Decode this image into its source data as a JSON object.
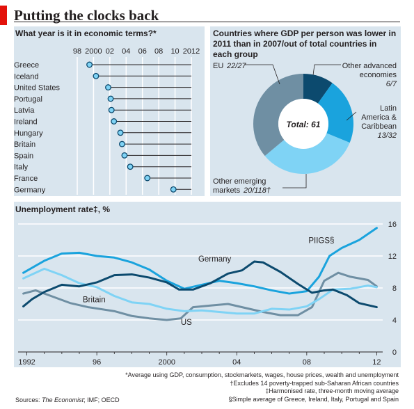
{
  "title": "Putting the clocks back",
  "colors": {
    "accent_red": "#e3120b",
    "panel_bg": "#d9e5ee",
    "dark_teal": "#0c4a6e",
    "mid_blue": "#1aa3dd",
    "light_blue": "#7fd3f5",
    "grey_blue": "#6f8fa3"
  },
  "chart_data": [
    {
      "type": "scatter",
      "title": "What year is it in economic terms?*",
      "x_ticks": [
        "98",
        "2000",
        "02",
        "04",
        "06",
        "08",
        "10",
        "2012"
      ],
      "xlim": [
        1998,
        2012
      ],
      "categories": [
        "Greece",
        "Iceland",
        "United States",
        "Portugal",
        "Latvia",
        "Ireland",
        "Hungary",
        "Britain",
        "Spain",
        "Italy",
        "France",
        "Germany"
      ],
      "values": [
        1999.5,
        2000.3,
        2001.8,
        2002.1,
        2002.2,
        2002.5,
        2003.3,
        2003.5,
        2003.8,
        2004.5,
        2006.6,
        2009.8
      ],
      "marker_color": "#7fd3f5"
    },
    {
      "type": "pie",
      "title": "Countries where GDP per person was lower in 2011 than in 2007/out of total countries in each group",
      "center_label": "Total: 61",
      "slices": [
        {
          "name": "Other advanced economies",
          "fraction": "6/7",
          "value": 6,
          "color": "#0c4a6e"
        },
        {
          "name": "Latin America & Caribbean",
          "fraction": "13/32",
          "value": 13,
          "color": "#1aa3dd"
        },
        {
          "name": "Other emerging markets",
          "fraction": "20/118†",
          "value": 20,
          "color": "#7fd3f5"
        },
        {
          "name": "EU",
          "fraction": "22/27",
          "value": 22,
          "color": "#6f8fa3"
        }
      ]
    },
    {
      "type": "line",
      "title": "Unemployment rate‡, %",
      "x_ticks": [
        "1992",
        "96",
        "2000",
        "04",
        "08",
        "12"
      ],
      "y_ticks": [
        "0",
        "4",
        "8",
        "12",
        "16"
      ],
      "xlim": [
        1991.5,
        2012.5
      ],
      "ylim": [
        0,
        16
      ],
      "series": [
        {
          "name": "Germany",
          "color": "#0c4a6e",
          "x": [
            1991.8,
            1992.3,
            1993,
            1994,
            1995,
            1996,
            1997,
            1998,
            1999,
            2000,
            2000.7,
            2001.5,
            2002.5,
            2003.5,
            2004.3,
            2005,
            2005.5,
            2006.5,
            2007.5,
            2008.3,
            2009,
            2009.5,
            2010.3,
            2011,
            2012
          ],
          "values": [
            5.7,
            6.6,
            7.5,
            8.4,
            8.2,
            8.7,
            9.6,
            9.7,
            9.3,
            8.7,
            7.8,
            7.8,
            8.6,
            9.8,
            10.2,
            11.3,
            11.2,
            10.0,
            8.5,
            7.4,
            7.7,
            7.8,
            7.1,
            6.1,
            5.6
          ]
        },
        {
          "name": "PIIGS§",
          "color": "#1aa3dd",
          "x": [
            1991.8,
            1993,
            1994,
            1995,
            1996,
            1997,
            1998,
            1999,
            2000,
            2001,
            2002,
            2003,
            2004,
            2005,
            2006,
            2007,
            2008,
            2008.7,
            2009.3,
            2010,
            2011,
            2012
          ],
          "values": [
            9.9,
            11.4,
            12.3,
            12.4,
            12.0,
            11.8,
            11.2,
            10.3,
            8.9,
            7.9,
            8.4,
            8.9,
            8.6,
            8.2,
            7.7,
            7.3,
            7.6,
            9.4,
            12.0,
            13.0,
            14.0,
            15.5
          ]
        },
        {
          "name": "Britain",
          "color": "#7fd3f5",
          "x": [
            1991.8,
            1993,
            1994,
            1995,
            1996,
            1997,
            1998,
            1999,
            2000,
            2001,
            2002,
            2003,
            2004,
            2005,
            2006,
            2007,
            2008,
            2008.7,
            2009.5,
            2010.5,
            2011.5,
            2012
          ],
          "values": [
            9.2,
            10.4,
            9.6,
            8.6,
            8.1,
            7.0,
            6.2,
            6.0,
            5.4,
            5.1,
            5.2,
            5.0,
            4.8,
            4.8,
            5.4,
            5.3,
            5.7,
            6.6,
            7.8,
            7.9,
            8.3,
            8.1
          ]
        },
        {
          "name": "US",
          "color": "#6f8fa3",
          "x": [
            1991.8,
            1992.5,
            1993.5,
            1994.5,
            1995.5,
            1997,
            1998,
            1999,
            2000,
            2000.8,
            2001.5,
            2002.5,
            2003.5,
            2004.5,
            2005.5,
            2006.5,
            2007.5,
            2008.3,
            2009,
            2009.8,
            2010.5,
            2011.5,
            2012
          ],
          "values": [
            7.3,
            7.7,
            6.9,
            6.1,
            5.6,
            5.1,
            4.5,
            4.2,
            4.0,
            4.2,
            5.6,
            5.8,
            6.0,
            5.5,
            5.0,
            4.6,
            4.6,
            5.6,
            8.9,
            9.9,
            9.4,
            9.0,
            8.2
          ]
        }
      ]
    }
  ],
  "footnotes": {
    "n1": "*Average using GDP, consumption, stockmarkets, wages, house prices, wealth and unemployment",
    "n2": "†Excludes 14 poverty-trapped sub-Saharan African countries",
    "n3": "‡Harmonised rate, three-month moving average",
    "n4": "§Simple average of Greece, Ireland, Italy, Portugal and Spain"
  },
  "sources": {
    "label": "Sources:",
    "text": "The Economist",
    "rest": "; IMF; OECD"
  }
}
